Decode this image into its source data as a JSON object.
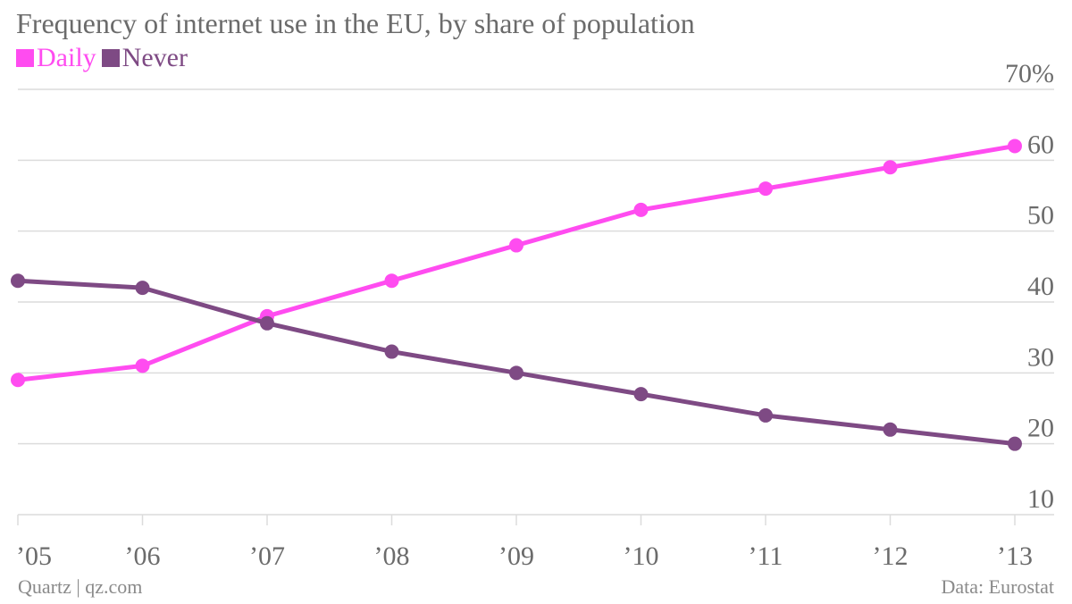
{
  "colors": {
    "daily": "#ff4cf0",
    "never": "#7e4a84",
    "grid": "#dcdcdc",
    "text": "#6b6b6b"
  },
  "chart_data": {
    "type": "line",
    "title": "Frequency of internet use in the EU, by share of population",
    "categories": [
      "’05",
      "’06",
      "’07",
      "’08",
      "’09",
      "’10",
      "’11",
      "’12",
      "’13"
    ],
    "series": [
      {
        "name": "Daily",
        "color": "#ff4cf0",
        "values": [
          29,
          31,
          38,
          43,
          48,
          53,
          56,
          59,
          62
        ]
      },
      {
        "name": "Never",
        "color": "#7e4a84",
        "values": [
          43,
          42,
          37,
          33,
          30,
          27,
          24,
          22,
          20
        ]
      }
    ],
    "ylim": [
      10,
      70
    ],
    "yticks": [
      {
        "value": 70,
        "label": "70%"
      },
      {
        "value": 60,
        "label": "60"
      },
      {
        "value": 50,
        "label": "50"
      },
      {
        "value": 40,
        "label": "40"
      },
      {
        "value": 30,
        "label": "30"
      },
      {
        "value": 20,
        "label": "20"
      },
      {
        "value": 10,
        "label": "10"
      }
    ],
    "grid": true,
    "legend_position": "top-left"
  },
  "footer": {
    "left": "Quartz | qz.com",
    "right": "Data: Eurostat"
  }
}
